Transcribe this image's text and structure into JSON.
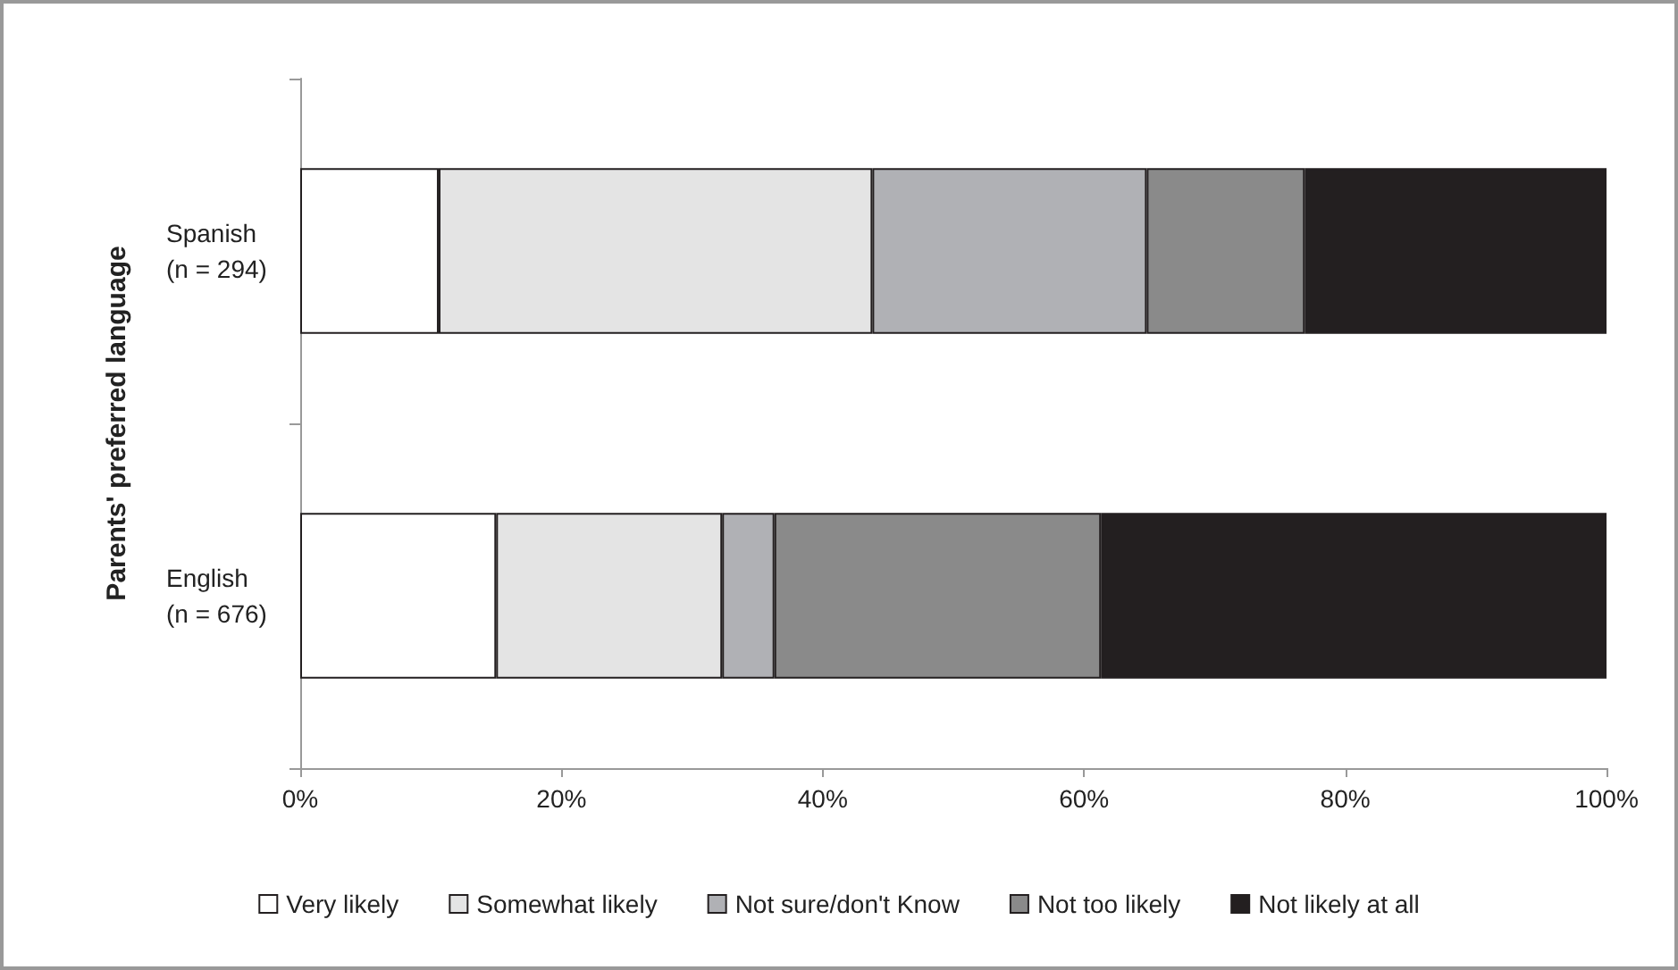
{
  "chart_data": {
    "type": "bar",
    "orientation": "horizontal",
    "stacked": true,
    "ylabel": "Parents' preferred language",
    "categories": [
      "Spanish\n(n = 294)",
      "English\n(n = 676)"
    ],
    "series": [
      {
        "name": "Very likely",
        "color": "#ffffff",
        "values": [
          10.6,
          15.0
        ]
      },
      {
        "name": "Somewhat likely",
        "color": "#e4e4e4",
        "values": [
          33.2,
          17.3
        ]
      },
      {
        "name": "Not sure/don't Know",
        "color": "#b0b1b5",
        "values": [
          21.0,
          4.0
        ]
      },
      {
        "name": "Not too likely",
        "color": "#8a8a8a",
        "values": [
          12.1,
          25.0
        ]
      },
      {
        "name": "Not likely at all",
        "color": "#231f20",
        "values": [
          23.1,
          38.7
        ]
      }
    ],
    "xlim": [
      0,
      100
    ],
    "xticks": [
      {
        "value": 0,
        "label": "0%"
      },
      {
        "value": 20,
        "label": "20%"
      },
      {
        "value": 40,
        "label": "40%"
      },
      {
        "value": 60,
        "label": "60%"
      },
      {
        "value": 80,
        "label": "80%"
      },
      {
        "value": 100,
        "label": "100%"
      }
    ],
    "grid": false,
    "legend": "bottom"
  }
}
